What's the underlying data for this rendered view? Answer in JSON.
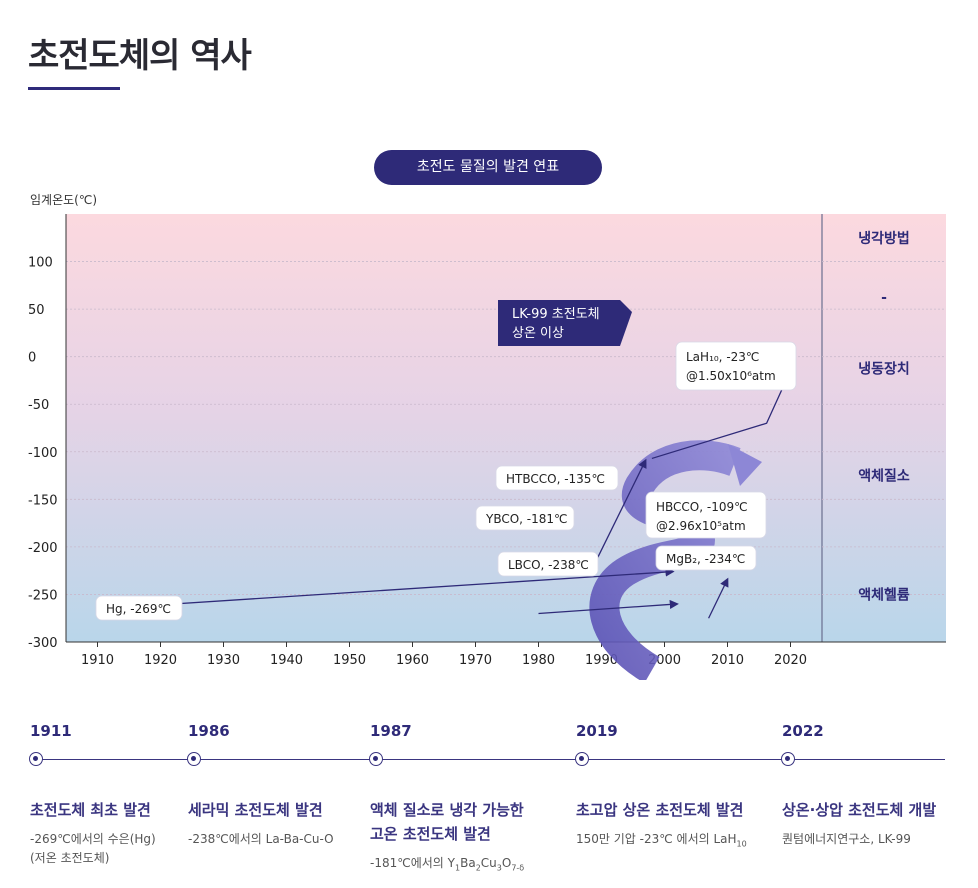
{
  "page": {
    "title": "초전도체의 역사"
  },
  "chart_data": {
    "type": "line",
    "title": "초전도 물질의 발견 연표",
    "ylabel": "임계온도(℃)",
    "xlabel": "",
    "xlim": [
      1905,
      2025
    ],
    "ylim": [
      -300,
      150
    ],
    "x_ticks": [
      1910,
      1920,
      1930,
      1940,
      1950,
      1960,
      1970,
      1980,
      1990,
      2000,
      2010,
      2020
    ],
    "y_ticks": [
      100,
      50,
      0,
      -50,
      -100,
      -150,
      -200,
      -250,
      -300
    ],
    "cooling_bands": [
      {
        "label": "냉각방법",
        "y_from": 150,
        "y_to": 100
      },
      {
        "label": "-",
        "y_from": 100,
        "y_to": 25
      },
      {
        "label": "냉동장치",
        "y_from": 25,
        "y_to": -50
      },
      {
        "label": "액체질소",
        "y_from": -50,
        "y_to": -200
      },
      {
        "label": "액체헬륨",
        "y_from": -200,
        "y_to": -300
      }
    ],
    "series": [
      {
        "name": "main-trend",
        "points": [
          [
            1911,
            -269
          ],
          [
            1986,
            -238
          ],
          [
            1987,
            -181
          ],
          [
            1993,
            -135
          ],
          [
            2019,
            -23
          ]
        ]
      },
      {
        "name": "minor-trend",
        "points": [
          [
            1980,
            -270
          ],
          [
            2002,
            -260
          ]
        ]
      },
      {
        "name": "mgb2-trend",
        "points": [
          [
            2007,
            -275
          ],
          [
            2010,
            -234
          ]
        ]
      }
    ],
    "annotations": [
      {
        "text": "Hg, -269℃",
        "x": 1911,
        "y": -269
      },
      {
        "text": "LBCO, -238℃",
        "x": 1986,
        "y": -238
      },
      {
        "text": "YBCO, -181℃",
        "x": 1987,
        "y": -181
      },
      {
        "text": "HTBCCO, -135℃",
        "x": 1993,
        "y": -135
      },
      {
        "text": "HBCCO, -109℃",
        "text2": "@2.96x10⁵atm",
        "x": 1994,
        "y": -109
      },
      {
        "text": "MgB₂, -234℃",
        "x": 2001,
        "y": -234
      },
      {
        "text": "LaH₁₀, -23℃",
        "text2": "@1.50x10⁶atm",
        "x": 2019,
        "y": -23
      }
    ],
    "highlight": {
      "line1": "LK-99 초전도체",
      "line2": "상온 이상"
    }
  },
  "timeline": [
    {
      "year": "1911",
      "head1": "초전도체 최초 발견",
      "head2": "",
      "desc1": "-269℃에서의 수은(Hg)",
      "desc2": "(저온 초전도체)"
    },
    {
      "year": "1986",
      "head1": "세라믹 초전도체 발견",
      "head2": "",
      "desc1": "-238℃에서의 La-Ba-Cu-O",
      "desc2": ""
    },
    {
      "year": "1987",
      "head1": "액체 질소로 냉각 가능한",
      "head2": "고온 초전도체 발견",
      "desc1": "-181℃에서의 ",
      "desc2": ""
    },
    {
      "year": "2019",
      "head1": "초고압 상온 초전도체 발견",
      "head2": "",
      "desc1": "150만 기압 -23℃ 에서의 LaH",
      "desc2": ""
    },
    {
      "year": "2022",
      "head1": "상온·상압 초전도체 개발",
      "head2": "",
      "desc1": "퀀텀에너지연구소, LK-99",
      "desc2": ""
    }
  ]
}
